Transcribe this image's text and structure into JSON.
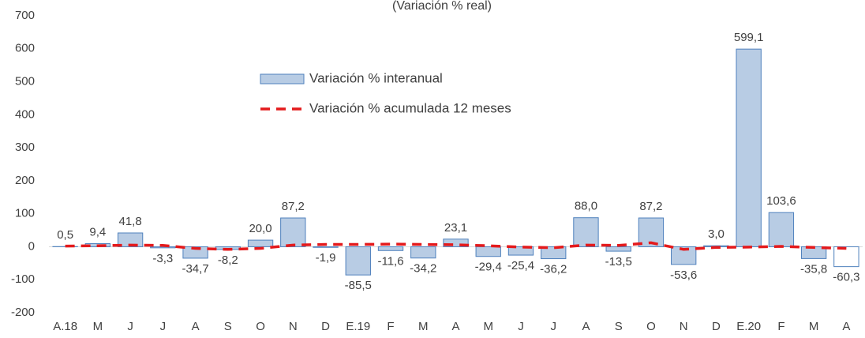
{
  "chart_data": {
    "type": "bar",
    "subtitle": "(Variación % real)",
    "categories": [
      "A.18",
      "M",
      "J",
      "J",
      "A",
      "S",
      "O",
      "N",
      "D",
      "E.19",
      "F",
      "M",
      "A",
      "M",
      "J",
      "J",
      "A",
      "S",
      "O",
      "N",
      "D",
      "E.20",
      "F",
      "M",
      "A"
    ],
    "series": [
      {
        "name": "Variación % interanual",
        "type": "bar",
        "color": "#b8cce4",
        "edge_color": "#4f81bd",
        "values": [
          0.5,
          9.4,
          41.8,
          -3.3,
          -34.7,
          -8.2,
          20.0,
          87.2,
          -1.9,
          -85.5,
          -11.6,
          -34.2,
          23.1,
          -29.4,
          -25.4,
          -36.2,
          88.0,
          -13.5,
          87.2,
          -53.6,
          3.0,
          599.1,
          103.6,
          -35.8,
          -60.3
        ],
        "value_labels": [
          "0,5",
          "9,4",
          "41,8",
          "-3,3",
          "-34,7",
          "-8,2",
          "20,0",
          "87,2",
          "-1,9",
          "-85,5",
          "-11,6",
          "-34,2",
          "23,1",
          "-29,4",
          "-25,4",
          "-36,2",
          "88,0",
          "-13,5",
          "87,2",
          "-53,6",
          "3,0",
          "599,1",
          "103,6",
          "-35,8",
          "-60,3"
        ],
        "bar_colors": [
          "#b8cce4",
          "#b8cce4",
          "#b8cce4",
          "#b8cce4",
          "#b8cce4",
          "#b8cce4",
          "#b8cce4",
          "#b8cce4",
          "#b8cce4",
          "#b8cce4",
          "#b8cce4",
          "#b8cce4",
          "#b8cce4",
          "#b8cce4",
          "#b8cce4",
          "#b8cce4",
          "#b8cce4",
          "#b8cce4",
          "#b8cce4",
          "#b8cce4",
          "#b8cce4",
          "#b8cce4",
          "#b8cce4",
          "#b8cce4",
          "#ffffff"
        ]
      },
      {
        "name": "Variación % acumulada 12 meses",
        "type": "line",
        "color": "#e41a1c",
        "dashed": true,
        "values": [
          2,
          3,
          5,
          4,
          -5,
          -8,
          -5,
          5,
          7,
          7,
          8,
          7,
          6,
          3,
          -1,
          -3,
          5,
          4,
          12,
          -8,
          -2,
          -1,
          1,
          -2,
          -5
        ]
      }
    ],
    "ylim": [
      -200,
      700
    ],
    "yticks": [
      -200,
      -100,
      0,
      100,
      200,
      300,
      400,
      500,
      600,
      700
    ],
    "grid": false
  }
}
